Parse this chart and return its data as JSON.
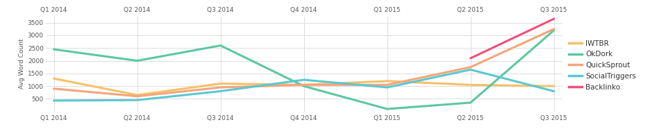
{
  "quarters": [
    "Q1 2014",
    "Q2 2014",
    "Q3 2014",
    "Q4 2014",
    "Q1 2015",
    "Q2 2015",
    "Q3 2015"
  ],
  "series": {
    "IWTBR": [
      1300,
      650,
      1100,
      1050,
      1200,
      1050,
      1000
    ],
    "OkDork": [
      2450,
      2000,
      2600,
      1000,
      100,
      350,
      3200
    ],
    "QuickSprout": [
      900,
      600,
      950,
      1050,
      1050,
      1750,
      3250
    ],
    "SocialTriggers": [
      430,
      450,
      800,
      1250,
      950,
      1650,
      800
    ],
    "Backlinko": [
      null,
      null,
      null,
      null,
      null,
      2100,
      3650
    ]
  },
  "colors": {
    "IWTBR": "#F5C06A",
    "OkDork": "#5BC8A0",
    "QuickSprout": "#F4A57A",
    "SocialTriggers": "#5BC8D0",
    "Backlinko": "#F0507A"
  },
  "ylabel": "Avg Word Count",
  "ylim": [
    0,
    3750
  ],
  "yticks": [
    500,
    1000,
    1500,
    2000,
    2500,
    3000,
    3500
  ],
  "background_color": "#ffffff",
  "grid_color": "#dddddd",
  "line_width": 2.2
}
